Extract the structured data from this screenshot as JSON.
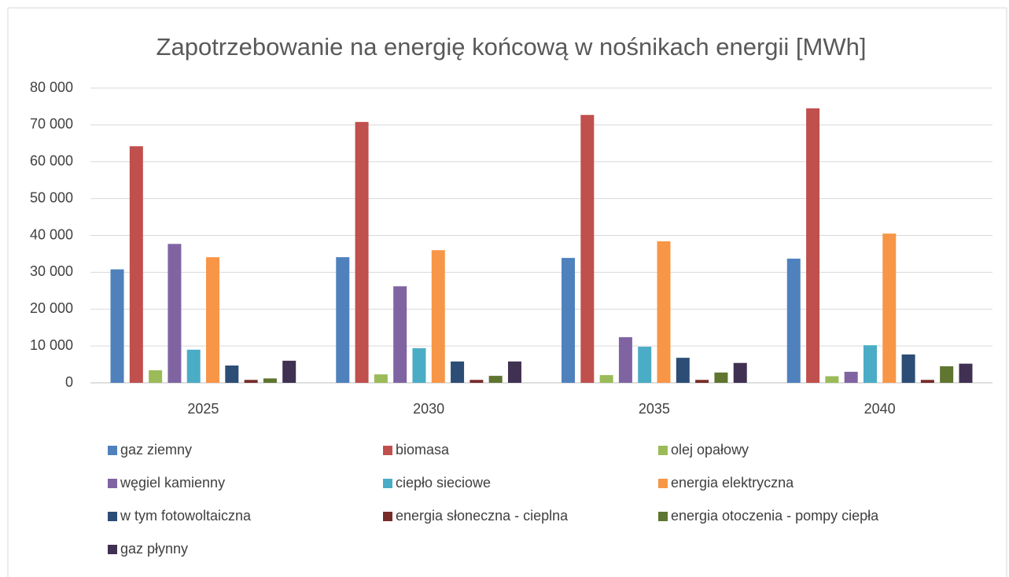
{
  "chart_data": {
    "type": "bar",
    "title": "Zapotrzebowanie na energię końcową w nośnikach energii [MWh]",
    "categories": [
      "2025",
      "2030",
      "2035",
      "2040"
    ],
    "series": [
      {
        "name": "gaz ziemny",
        "color": "#4f81bd",
        "values": [
          30800,
          34100,
          33900,
          33700
        ]
      },
      {
        "name": "biomasa",
        "color": "#c0504d",
        "values": [
          64200,
          70800,
          72700,
          74500
        ]
      },
      {
        "name": "olej opałowy",
        "color": "#9bbb59",
        "values": [
          3400,
          2300,
          2100,
          1800
        ]
      },
      {
        "name": "węgiel kamienny",
        "color": "#8064a2",
        "values": [
          37700,
          26200,
          12400,
          3000
        ]
      },
      {
        "name": "ciepło sieciowe",
        "color": "#4bacc6",
        "values": [
          9000,
          9400,
          9800,
          10200
        ]
      },
      {
        "name": "energia elektryczna",
        "color": "#f79646",
        "values": [
          34100,
          36000,
          38400,
          40500
        ]
      },
      {
        "name": "w tym fotowoltaiczna",
        "color": "#2c4d75",
        "values": [
          4700,
          5800,
          6800,
          7700
        ]
      },
      {
        "name": "energia słoneczna - cieplna",
        "color": "#772c2a",
        "values": [
          800,
          800,
          800,
          800
        ]
      },
      {
        "name": "energia otoczenia - pompy ciepła",
        "color": "#5f7530",
        "values": [
          1200,
          1900,
          2800,
          4500
        ]
      },
      {
        "name": "gaz płynny",
        "color": "#403152",
        "values": [
          6000,
          5800,
          5400,
          5200
        ]
      }
    ],
    "ylim": [
      0,
      80000
    ],
    "yticks": [
      0,
      {
        "value": 10000,
        "label": "10 000"
      },
      {
        "value": 20000,
        "label": "20 000"
      },
      {
        "value": 30000,
        "label": "30 000"
      },
      {
        "value": 40000,
        "label": "40 000"
      },
      {
        "value": 50000,
        "label": "50 000"
      },
      {
        "value": 60000,
        "label": "60 000"
      },
      {
        "value": 70000,
        "label": "70 000"
      },
      {
        "value": 80000,
        "label": "80 000"
      }
    ],
    "grid": true
  }
}
